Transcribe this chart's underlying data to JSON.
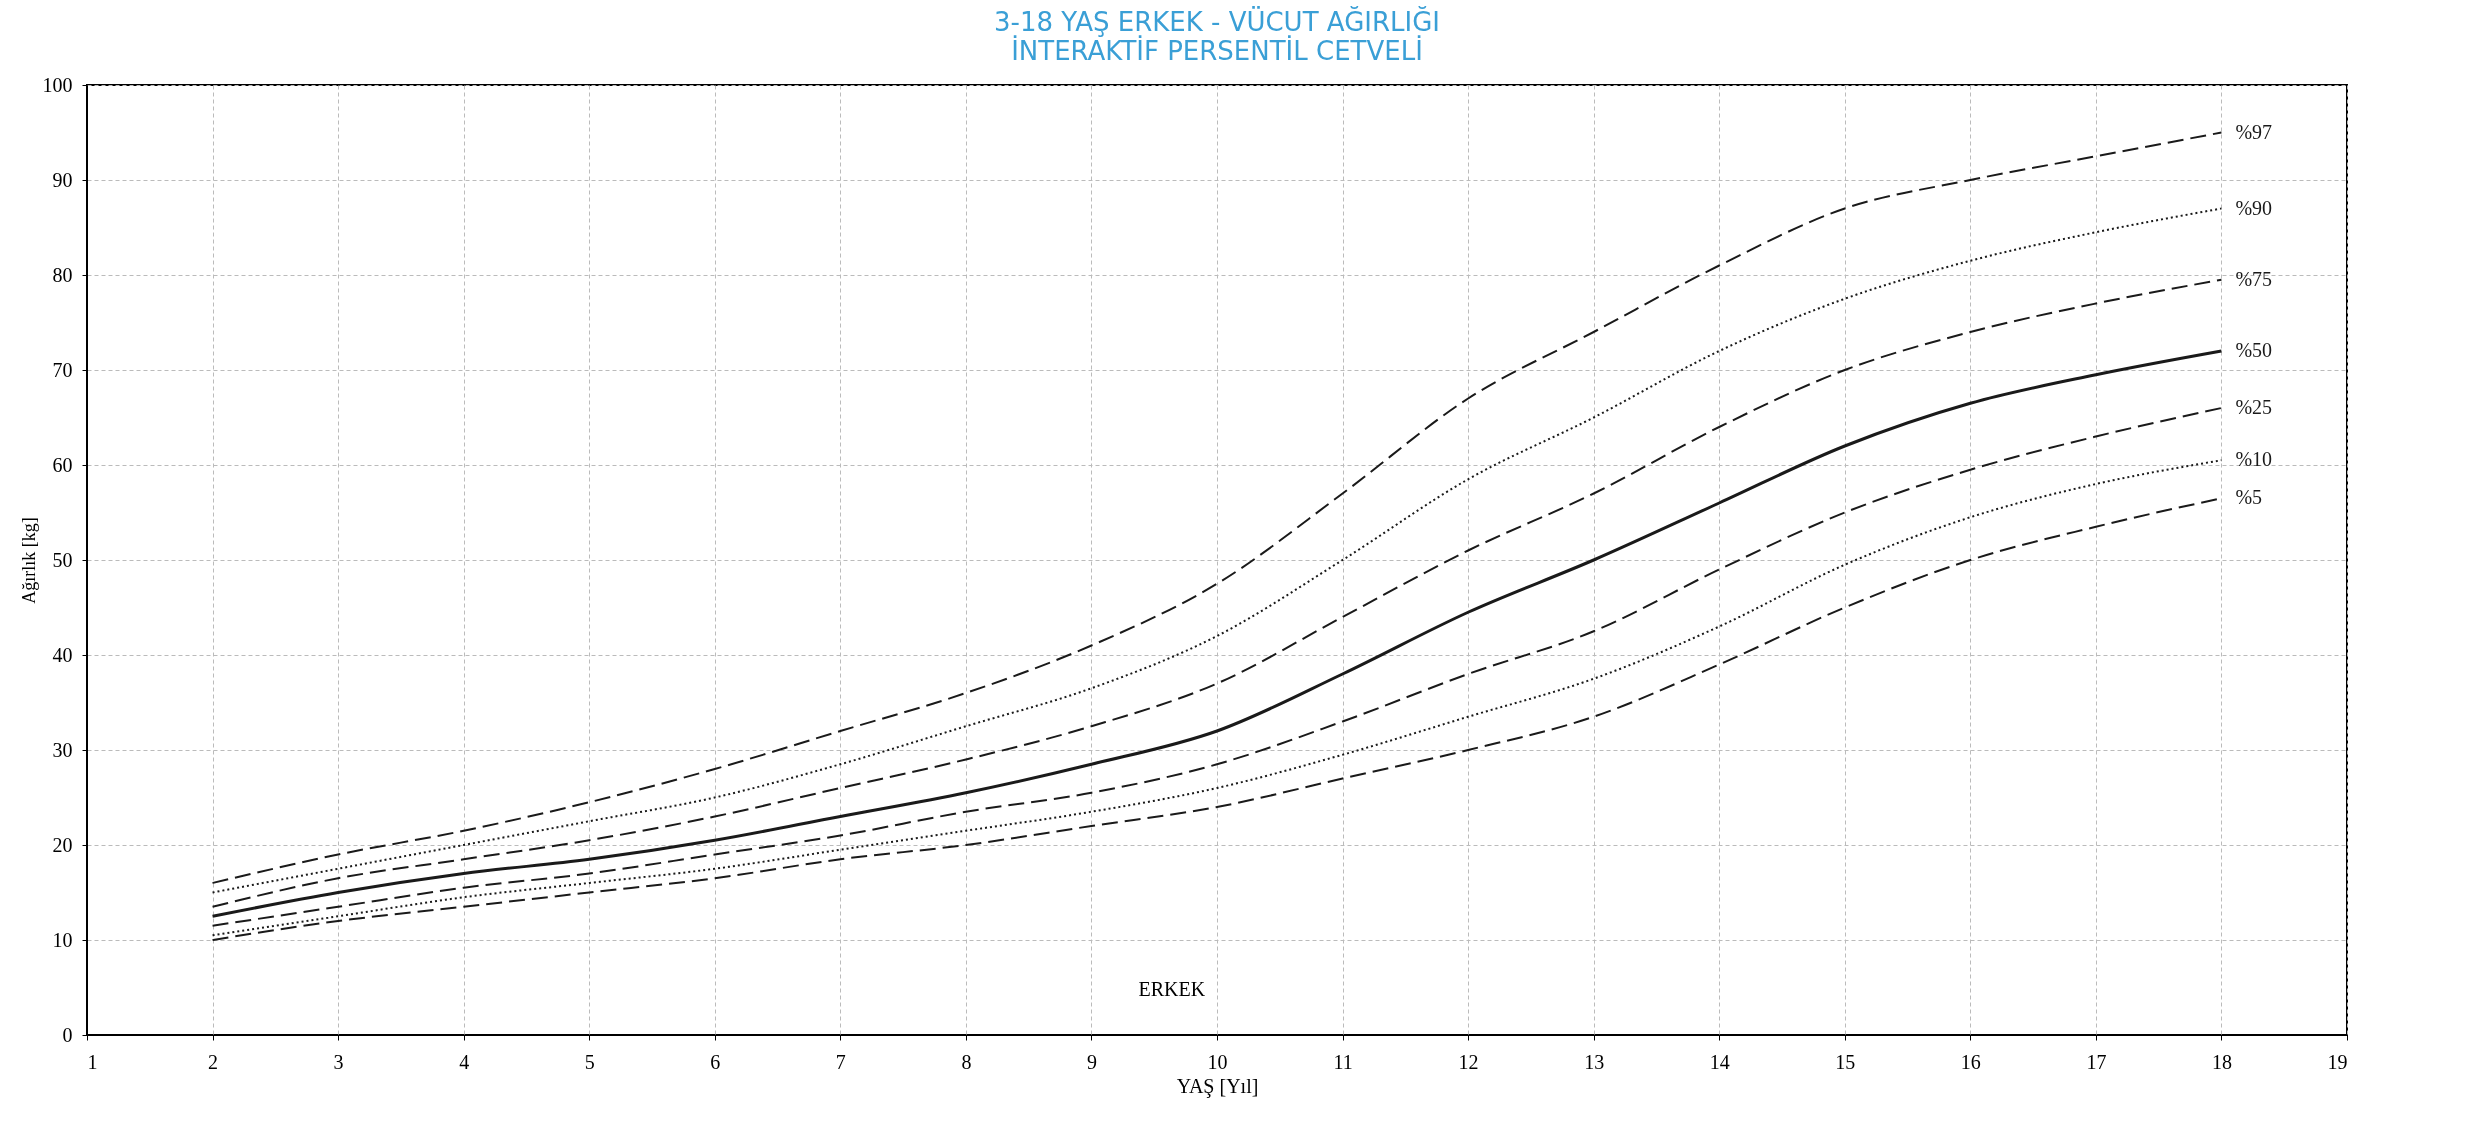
{
  "chart_data": {
    "type": "line",
    "title": "3-18 YAŞ ERKEK - VÜCUT AĞIRLIĞI",
    "subtitle": "İNTERAKTİF PERSENTİL CETVELİ",
    "xlabel": "YAŞ [Yıl]",
    "ylabel": "Ağırlık [kg]",
    "x": [
      2,
      3,
      4,
      5,
      6,
      7,
      8,
      9,
      10,
      11,
      12,
      13,
      14,
      15,
      16,
      17,
      18
    ],
    "series": [
      {
        "name": "%97",
        "color": "#1a1a1a",
        "line_style": "dashed",
        "values": [
          16,
          19,
          21.5,
          24.5,
          28,
          32,
          36,
          41,
          47.5,
          57,
          67,
          74,
          81,
          87,
          90,
          92.5,
          95
        ]
      },
      {
        "name": "%90",
        "color": "#1a1a1a",
        "line_style": "dotted",
        "values": [
          15,
          17.5,
          20,
          22.5,
          25,
          28.5,
          32.5,
          36.5,
          42,
          50,
          58.5,
          65,
          72,
          77.5,
          81.5,
          84.5,
          87
        ]
      },
      {
        "name": "%75",
        "color": "#1a1a1a",
        "line_style": "dashed",
        "values": [
          13.5,
          16.5,
          18.5,
          20.5,
          23,
          26,
          29,
          32.5,
          37,
          44,
          51,
          57,
          64,
          70,
          74,
          77,
          79.5
        ]
      },
      {
        "name": "%50",
        "color": "#1a1a1a",
        "line_style": "solid",
        "values": [
          12.5,
          15,
          17,
          18.5,
          20.5,
          23,
          25.5,
          28.5,
          32,
          38,
          44.5,
          50,
          56,
          62,
          66.5,
          69.5,
          72
        ]
      },
      {
        "name": "%25",
        "color": "#1a1a1a",
        "line_style": "dashed",
        "values": [
          11.5,
          13.5,
          15.5,
          17,
          19,
          21,
          23.5,
          25.5,
          28.5,
          33,
          38,
          42.5,
          49,
          55,
          59.5,
          63,
          66
        ]
      },
      {
        "name": "%10",
        "color": "#1a1a1a",
        "line_style": "dotted",
        "values": [
          10.5,
          12.5,
          14.5,
          16,
          17.5,
          19.5,
          21.5,
          23.5,
          26,
          29.5,
          33.5,
          37.5,
          43,
          49.5,
          54.5,
          58,
          60.5
        ]
      },
      {
        "name": "%5",
        "color": "#1a1a1a",
        "line_style": "dashed",
        "values": [
          10,
          12,
          13.5,
          15,
          16.5,
          18.5,
          20,
          22,
          24,
          27,
          30,
          33.5,
          39,
          45,
          50,
          53.5,
          56.5
        ]
      }
    ],
    "xlim": [
      1,
      19
    ],
    "xticks": [
      1,
      2,
      3,
      4,
      5,
      6,
      7,
      8,
      9,
      10,
      11,
      12,
      13,
      14,
      15,
      16,
      17,
      18,
      19
    ],
    "ylim": [
      0,
      100
    ],
    "yticks": [
      0,
      10,
      20,
      30,
      40,
      50,
      60,
      70,
      80,
      90,
      100
    ],
    "grid": true,
    "legend": false,
    "annotations": [
      "ERKEK"
    ]
  }
}
